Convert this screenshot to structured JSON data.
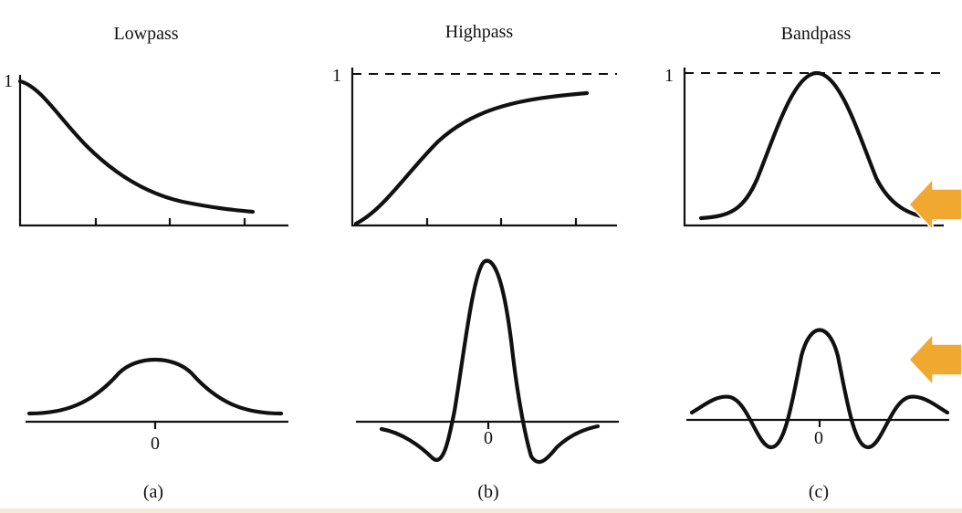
{
  "panels": [
    {
      "id": "a",
      "title": "Lowpass",
      "top_tick": "1",
      "bottom_tick": "0",
      "caption": "(a)"
    },
    {
      "id": "b",
      "title": "Highpass",
      "top_tick": "1",
      "bottom_tick": "0",
      "caption": "(b)"
    },
    {
      "id": "c",
      "title": "Bandpass",
      "top_tick": "1",
      "bottom_tick": "0",
      "caption": "(c)"
    }
  ],
  "overlay": {
    "arrow_color": "#f0a830",
    "arrow_icon": "arrow-left-icon",
    "arrow_count": 2
  }
}
